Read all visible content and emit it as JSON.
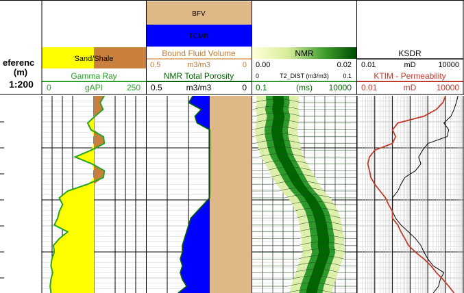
{
  "reference_track": {
    "label": "eferenc",
    "unit": "(m)",
    "scale": "1:200"
  },
  "track_gr": {
    "fill_legend": "Sand/Shale",
    "curve_name": "Gamma Ray",
    "left_value": "0",
    "unit": "gAPI",
    "right_value": "250",
    "curve_color": "#28a228",
    "sand_color": "#ffff00",
    "shale_color": "#c8803c"
  },
  "track_porosity": {
    "bfv_label": "BFV",
    "tcmr_label": "TCMR",
    "bfv_color": "#deb887",
    "tcmr_color": "#0000ff",
    "bfv_curve_name": "Bound Fluid Volume",
    "bfv_left": "0.5",
    "bfv_unit": "m3/m3",
    "bfv_right": "0",
    "tcmr_curve_name": "NMR Total Porosity",
    "tcmr_left": "0.5",
    "tcmr_unit": "m3/m3",
    "tcmr_right": "0",
    "bfv_text_color": "#c07a30",
    "tcmr_text_color": "#006400"
  },
  "track_nmr": {
    "title": "NMR",
    "color_min": "0.00",
    "color_max": "0.02",
    "dist_left": "0",
    "dist_name": "T2_DIST (m3/m3)",
    "dist_right": "0.1",
    "axis_left": "0.1",
    "axis_unit": "(ms)",
    "axis_right": "10000",
    "dark_green": "#006400",
    "mid_green": "#2e9a2e"
  },
  "track_perm": {
    "ksdr_name": "KSDR",
    "ksdr_left": "0.01",
    "ksdr_unit": "mD",
    "ksdr_right": "10000",
    "ktim_name": "KTIM - Permeability",
    "ktim_left": "0.01",
    "ktim_unit": "mD",
    "ktim_right": "10000",
    "ksdr_color": "#000000",
    "ktim_color": "#c0392b"
  },
  "chart_data": {
    "type": "well-log",
    "depth_samples": 30,
    "depth_index": [
      0,
      1,
      2,
      3,
      4,
      5,
      6,
      7,
      8,
      9,
      10,
      11,
      12,
      13,
      14,
      15,
      16,
      17,
      18,
      19,
      20,
      21,
      22,
      23,
      24,
      25,
      26,
      27,
      28,
      29
    ],
    "gamma_ray_gapi": [
      150,
      140,
      147,
      128,
      110,
      118,
      148,
      150,
      118,
      80,
      120,
      150,
      148,
      110,
      62,
      42,
      50,
      42,
      38,
      30,
      62,
      42,
      28,
      30,
      24,
      22,
      26,
      22,
      20,
      22
    ],
    "tcmr_m3m3": [
      0.28,
      0.3,
      0.24,
      0.27,
      0.26,
      0.17,
      0.11,
      0.09,
      0.11,
      0.1,
      0.09,
      0.06,
      0.02,
      0.0,
      0.1,
      0.2,
      0.23,
      0.26,
      0.29,
      0.3,
      0.31,
      0.32,
      0.33,
      0.33,
      0.34,
      0.33,
      0.34,
      0.33,
      0.31,
      0.35
    ],
    "bfv_m3m3": [
      0.0,
      0.0,
      0.0,
      0.0,
      0.0,
      0.0,
      0.0,
      0.0,
      0.0,
      0.0,
      0.0,
      0.0,
      0.0,
      0.0,
      0.0,
      0.0,
      0.0,
      0.0,
      0.0,
      0.0,
      0.0,
      0.0,
      0.0,
      0.0,
      0.0,
      0.0,
      0.0,
      0.0,
      0.0,
      0.0
    ],
    "t2_peak_ms": [
      1.5,
      1.6,
      1.4,
      1.7,
      1.5,
      1.3,
      1.4,
      1.7,
      2,
      2.6,
      4,
      6,
      9,
      14,
      25,
      50,
      80,
      120,
      150,
      180,
      200,
      230,
      220,
      250,
      200,
      150,
      120,
      90,
      70,
      60
    ],
    "ksdr_md": [
      5000,
      4000,
      3000,
      2000,
      800,
      1500,
      1200,
      100,
      50,
      30,
      40,
      20,
      5,
      3,
      2,
      1,
      1,
      1,
      1.5,
      3,
      8,
      20,
      40,
      60,
      100,
      200,
      800,
      500,
      400,
      200
    ],
    "ktim_md": [
      1000,
      700,
      300,
      60,
      2,
      1,
      1.5,
      1,
      0.1,
      0.05,
      0.04,
      0.05,
      0.06,
      0.1,
      0.2,
      0.4,
      0.6,
      1,
      1,
      2,
      3,
      5,
      8,
      20,
      60,
      150,
      300,
      700,
      1500,
      3000
    ]
  }
}
